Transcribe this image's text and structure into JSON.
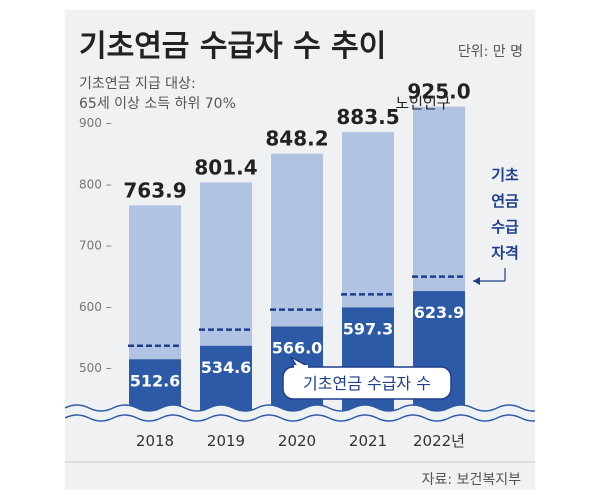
{
  "header": {
    "title": "기초연금 수급자 수 추이",
    "unit": "단위: 만 명",
    "subtitle_line1": "기초연금 지급 대상:",
    "subtitle_line2": "65세 이상 소득 하위 70%",
    "source": "자료: 보건복지부"
  },
  "labels": {
    "elderly_population": "노인인구",
    "eligibility_1": "기초",
    "eligibility_2": "연금",
    "eligibility_3": "수급",
    "eligibility_4": "자격",
    "recipients_callout": "기초연금 수급자 수"
  },
  "colors": {
    "population_bar": "#b1c3e3",
    "recipient_bar": "#2c5aa6",
    "eligibility_line": "#1f3f8a",
    "background": "#f0f1f2",
    "text_dark": "#222222",
    "text_grey": "#555555"
  },
  "chart_data": {
    "type": "bar",
    "categories": [
      "2018",
      "2019",
      "2020",
      "2021",
      "2022년"
    ],
    "series": [
      {
        "name": "노인인구",
        "values": [
          763.9,
          801.4,
          848.2,
          883.5,
          925.0
        ],
        "labels": [
          "763.9",
          "801.4",
          "848.2",
          "883.5",
          "925.0"
        ]
      },
      {
        "name": "기초연금 수급자 수",
        "values": [
          512.6,
          534.6,
          566.0,
          597.3,
          623.9
        ],
        "labels": [
          "512.6",
          "534.6",
          "566.0",
          "597.3",
          "623.9"
        ]
      },
      {
        "name": "기초연금 수급자격",
        "values": [
          534.7,
          561.0,
          593.7,
          618.5,
          647.5
        ]
      }
    ],
    "y_ticks": [
      500,
      600,
      700,
      800,
      900
    ],
    "y_tick_labels": [
      "500 –",
      "600 –",
      "700 –",
      "800 –",
      "900 –"
    ],
    "ylim": [
      430,
      960
    ],
    "axis_break": true
  }
}
